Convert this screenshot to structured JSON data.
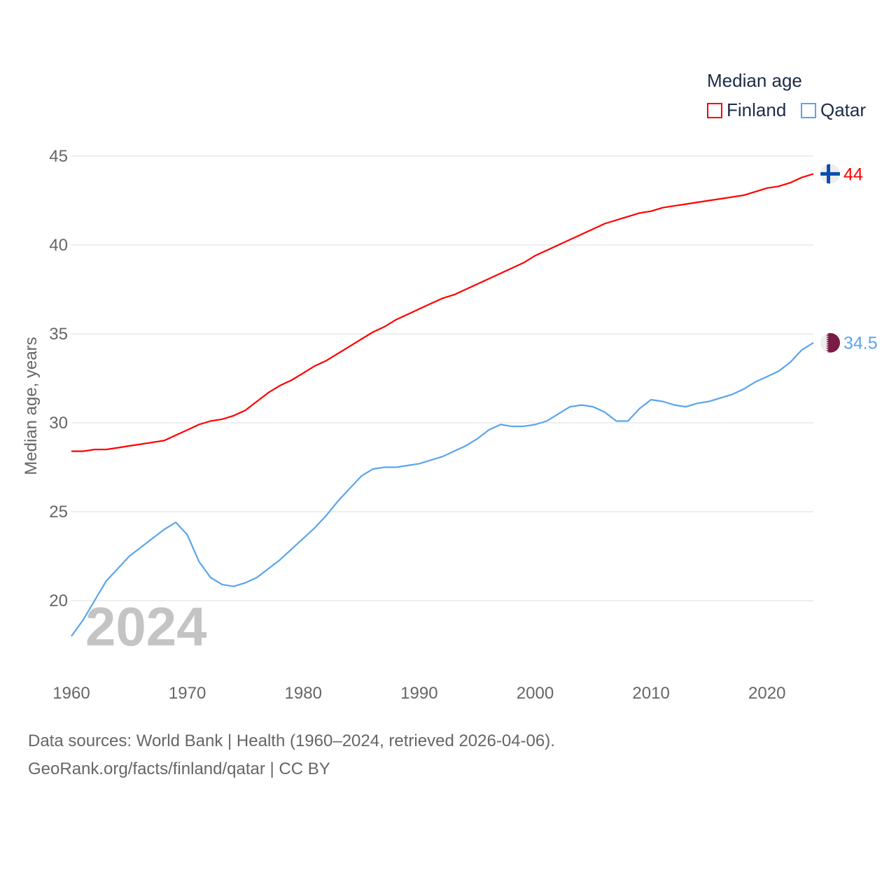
{
  "chart_data": {
    "type": "line",
    "title": "",
    "year_label": "2024",
    "xlabel": "",
    "ylabel": "Median age, years",
    "xlim": [
      1960,
      2024
    ],
    "ylim": [
      17,
      45
    ],
    "x_ticks": [
      1960,
      1970,
      1980,
      1990,
      2000,
      2010,
      2020
    ],
    "y_ticks": [
      20,
      25,
      30,
      35,
      40,
      45
    ],
    "grid": true,
    "legend": {
      "title": "Median age",
      "placement": "top-right"
    },
    "x": [
      1960,
      1961,
      1962,
      1963,
      1964,
      1965,
      1966,
      1967,
      1968,
      1969,
      1970,
      1971,
      1972,
      1973,
      1974,
      1975,
      1976,
      1977,
      1978,
      1979,
      1980,
      1981,
      1982,
      1983,
      1984,
      1985,
      1986,
      1987,
      1988,
      1989,
      1990,
      1991,
      1992,
      1993,
      1994,
      1995,
      1996,
      1997,
      1998,
      1999,
      2000,
      2001,
      2002,
      2003,
      2004,
      2005,
      2006,
      2007,
      2008,
      2009,
      2010,
      2011,
      2012,
      2013,
      2014,
      2015,
      2016,
      2017,
      2018,
      2019,
      2020,
      2021,
      2022,
      2023,
      2024
    ],
    "series": [
      {
        "name": "Finland",
        "color": "#ff0000",
        "end_label": "44",
        "values": [
          28.4,
          28.4,
          28.5,
          28.5,
          28.6,
          28.7,
          28.8,
          28.9,
          29.0,
          29.3,
          29.6,
          29.9,
          30.1,
          30.2,
          30.4,
          30.7,
          31.2,
          31.7,
          32.1,
          32.4,
          32.8,
          33.2,
          33.5,
          33.9,
          34.3,
          34.7,
          35.1,
          35.4,
          35.8,
          36.1,
          36.4,
          36.7,
          37.0,
          37.2,
          37.5,
          37.8,
          38.1,
          38.4,
          38.7,
          39.0,
          39.4,
          39.7,
          40.0,
          40.3,
          40.6,
          40.9,
          41.2,
          41.4,
          41.6,
          41.8,
          41.9,
          42.1,
          42.2,
          42.3,
          42.4,
          42.5,
          42.6,
          42.7,
          42.8,
          43.0,
          43.2,
          43.3,
          43.5,
          43.8,
          44.0
        ]
      },
      {
        "name": "Qatar",
        "color": "#5aa5ec",
        "end_label": "34.5",
        "values": [
          18.0,
          18.9,
          20.0,
          21.1,
          21.8,
          22.5,
          23.0,
          23.5,
          24.0,
          24.4,
          23.7,
          22.2,
          21.3,
          20.9,
          20.8,
          21.0,
          21.3,
          21.8,
          22.3,
          22.9,
          23.5,
          24.1,
          24.8,
          25.6,
          26.3,
          27.0,
          27.4,
          27.5,
          27.5,
          27.6,
          27.7,
          27.9,
          28.1,
          28.4,
          28.7,
          29.1,
          29.6,
          29.9,
          29.8,
          29.8,
          29.9,
          30.1,
          30.5,
          30.9,
          31.0,
          30.9,
          30.6,
          30.1,
          30.1,
          30.8,
          31.3,
          31.2,
          31.0,
          30.9,
          31.1,
          31.2,
          31.4,
          31.6,
          31.9,
          32.3,
          32.6,
          32.9,
          33.4,
          34.1,
          34.5
        ]
      }
    ]
  },
  "footer": {
    "line1": "Data sources: World Bank | Health (1960–2024, retrieved 2026-04-06).",
    "line2": "GeoRank.org/facts/finland/qatar | CC BY"
  },
  "colors": {
    "finland_flag_blue": "#0a4fae",
    "qatar_flag_maroon": "#7a1a45",
    "flag_bg": "#eeeeee"
  }
}
